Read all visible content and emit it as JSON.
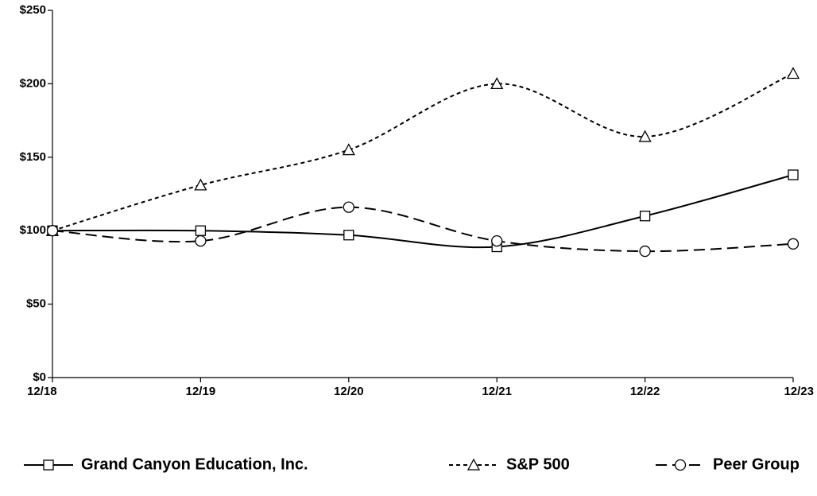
{
  "chart_data": {
    "type": "line",
    "title": "",
    "xlabel": "",
    "ylabel": "",
    "x": [
      "12/18",
      "12/19",
      "12/20",
      "12/21",
      "12/22",
      "12/23"
    ],
    "ylim": [
      0,
      250
    ],
    "yticks": [
      0,
      50,
      100,
      150,
      200,
      250
    ],
    "ytick_labels": [
      "$0",
      "$50",
      "$100",
      "$150",
      "$200",
      "$250"
    ],
    "grid": false,
    "legend_position": "bottom",
    "series": [
      {
        "name": "Grand Canyon Education, Inc.",
        "values": [
          100,
          100,
          97,
          89,
          110,
          138
        ],
        "marker": "square",
        "line_style": "solid",
        "color": "#000000"
      },
      {
        "name": "S&P 500",
        "values": [
          100,
          131,
          155,
          200,
          164,
          207
        ],
        "marker": "triangle",
        "line_style": "dotted",
        "color": "#000000"
      },
      {
        "name": "Peer Group",
        "values": [
          100,
          93,
          116,
          93,
          86,
          91
        ],
        "marker": "circle",
        "line_style": "dashed",
        "color": "#000000"
      }
    ]
  }
}
